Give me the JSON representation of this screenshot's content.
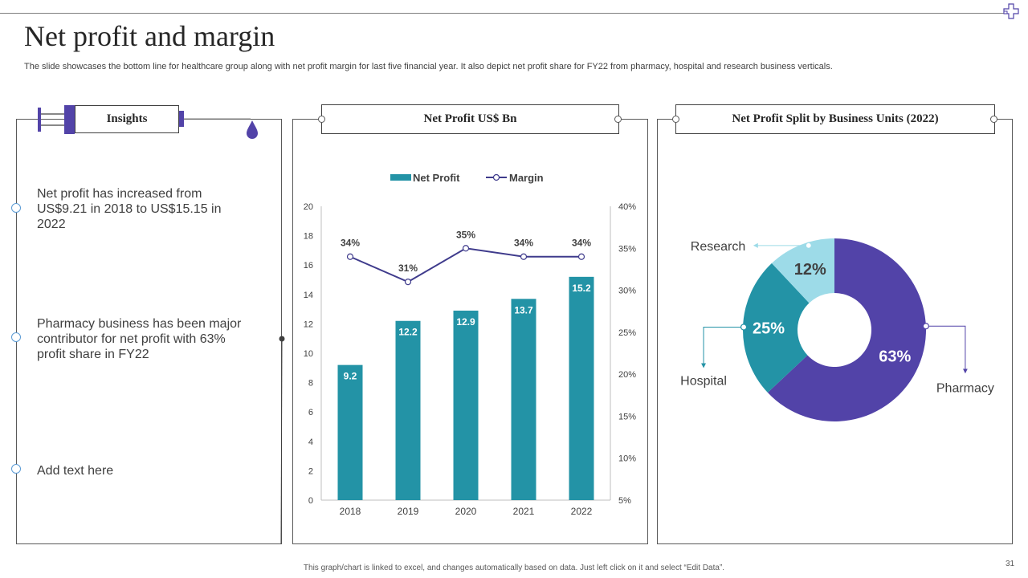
{
  "slide": {
    "title": "Net profit and margin",
    "subtitle": "The slide showcases the bottom line for healthcare group along with net profit margin for last five financial year. It also depict net profit share for FY22 from pharmacy, hospital and research business verticals.",
    "footer": "This graph/chart is linked to excel, and changes automatically based on data. Just left click on it and select “Edit Data”.",
    "page_number": "31"
  },
  "insights": {
    "header": "Insights",
    "items": [
      "Net profit has increased from US$9.21 in 2018 to US$15.15 in 2022",
      "Pharmacy business has been major contributor for net profit with 63% profit share in FY22",
      "Add text here"
    ]
  },
  "colors": {
    "bar": "#2393a6",
    "line": "#3f3b8c",
    "pharmacy": "#5243a8",
    "hospital": "#2393a6",
    "research": "#9ddbe8",
    "accent": "#5b9bd5"
  },
  "chart_data": [
    {
      "type": "bar",
      "title": "Net Profit  US$ Bn",
      "categories": [
        "2018",
        "2019",
        "2020",
        "2021",
        "2022"
      ],
      "series": [
        {
          "name": "Net Profit",
          "type": "bar",
          "axis": "left",
          "values": [
            9.2,
            12.2,
            12.9,
            13.7,
            15.2
          ],
          "labels": [
            "9.2",
            "12.2",
            "12.9",
            "13.7",
            "15.2"
          ]
        },
        {
          "name": "Margin",
          "type": "line",
          "axis": "right",
          "values": [
            34,
            31,
            35,
            34,
            34
          ],
          "labels": [
            "34%",
            "31%",
            "35%",
            "34%",
            "34%"
          ]
        }
      ],
      "ylim": [
        0,
        20
      ],
      "yticks": [
        "0",
        "2",
        "4",
        "6",
        "8",
        "10",
        "12",
        "14",
        "16",
        "18",
        "20"
      ],
      "y2lim": [
        5,
        40
      ],
      "y2ticks": [
        "5%",
        "10%",
        "15%",
        "20%",
        "25%",
        "30%",
        "35%",
        "40%"
      ],
      "legend_position": "top"
    },
    {
      "type": "pie",
      "title": "Net Profit  Split by Business Units (2022)",
      "donut": true,
      "slices": [
        {
          "name": "Pharmacy",
          "value": 63,
          "label": "63%"
        },
        {
          "name": "Hospital",
          "value": 25,
          "label": "25%"
        },
        {
          "name": "Research",
          "value": 12,
          "label": "12%"
        }
      ]
    }
  ]
}
